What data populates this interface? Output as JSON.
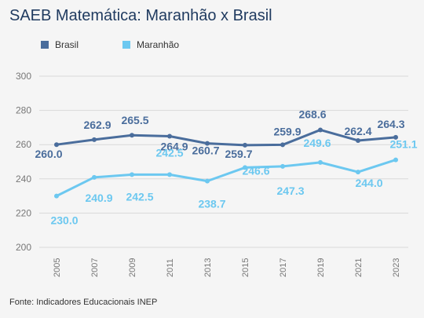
{
  "title": "SAEB Matemática: Maranhão x Brasil",
  "source": "Fonte: Indicadores Educacionais INEP",
  "colors": {
    "brasil": "#4a6d9c",
    "maranhao": "#6cc8f0",
    "grid": "#d9d9d9",
    "axis_text": "#777777"
  },
  "chart_data": {
    "type": "line",
    "title": "SAEB Matemática: Maranhão x Brasil",
    "categories": [
      "2005",
      "2007",
      "2009",
      "2011",
      "2013",
      "2015",
      "2017",
      "2019",
      "2021",
      "2023"
    ],
    "ylim": [
      200,
      300
    ],
    "yticks": [
      "200",
      "220",
      "240",
      "260",
      "280",
      "300"
    ],
    "grid": true,
    "legend": "top-left",
    "series": [
      {
        "name": "Brasil",
        "color": "#4a6d9c",
        "values": [
          260.0,
          262.9,
          265.5,
          264.9,
          260.7,
          259.7,
          259.9,
          268.6,
          262.4,
          264.3
        ],
        "labels": [
          "260.0",
          "262.9",
          "265.5",
          "264.9",
          "260.7",
          "259.7",
          "259.9",
          "268.6",
          "262.4",
          "264.3"
        ]
      },
      {
        "name": "Maranhão",
        "color": "#6cc8f0",
        "values": [
          230.0,
          240.9,
          242.5,
          242.5,
          238.7,
          246.6,
          247.3,
          249.6,
          244.0,
          251.1
        ],
        "labels": [
          "230.0",
          "240.9",
          "242.5",
          "242.5",
          "238.7",
          "246.6",
          "247.3",
          "249.6",
          "244.0",
          "251.1"
        ]
      }
    ]
  }
}
